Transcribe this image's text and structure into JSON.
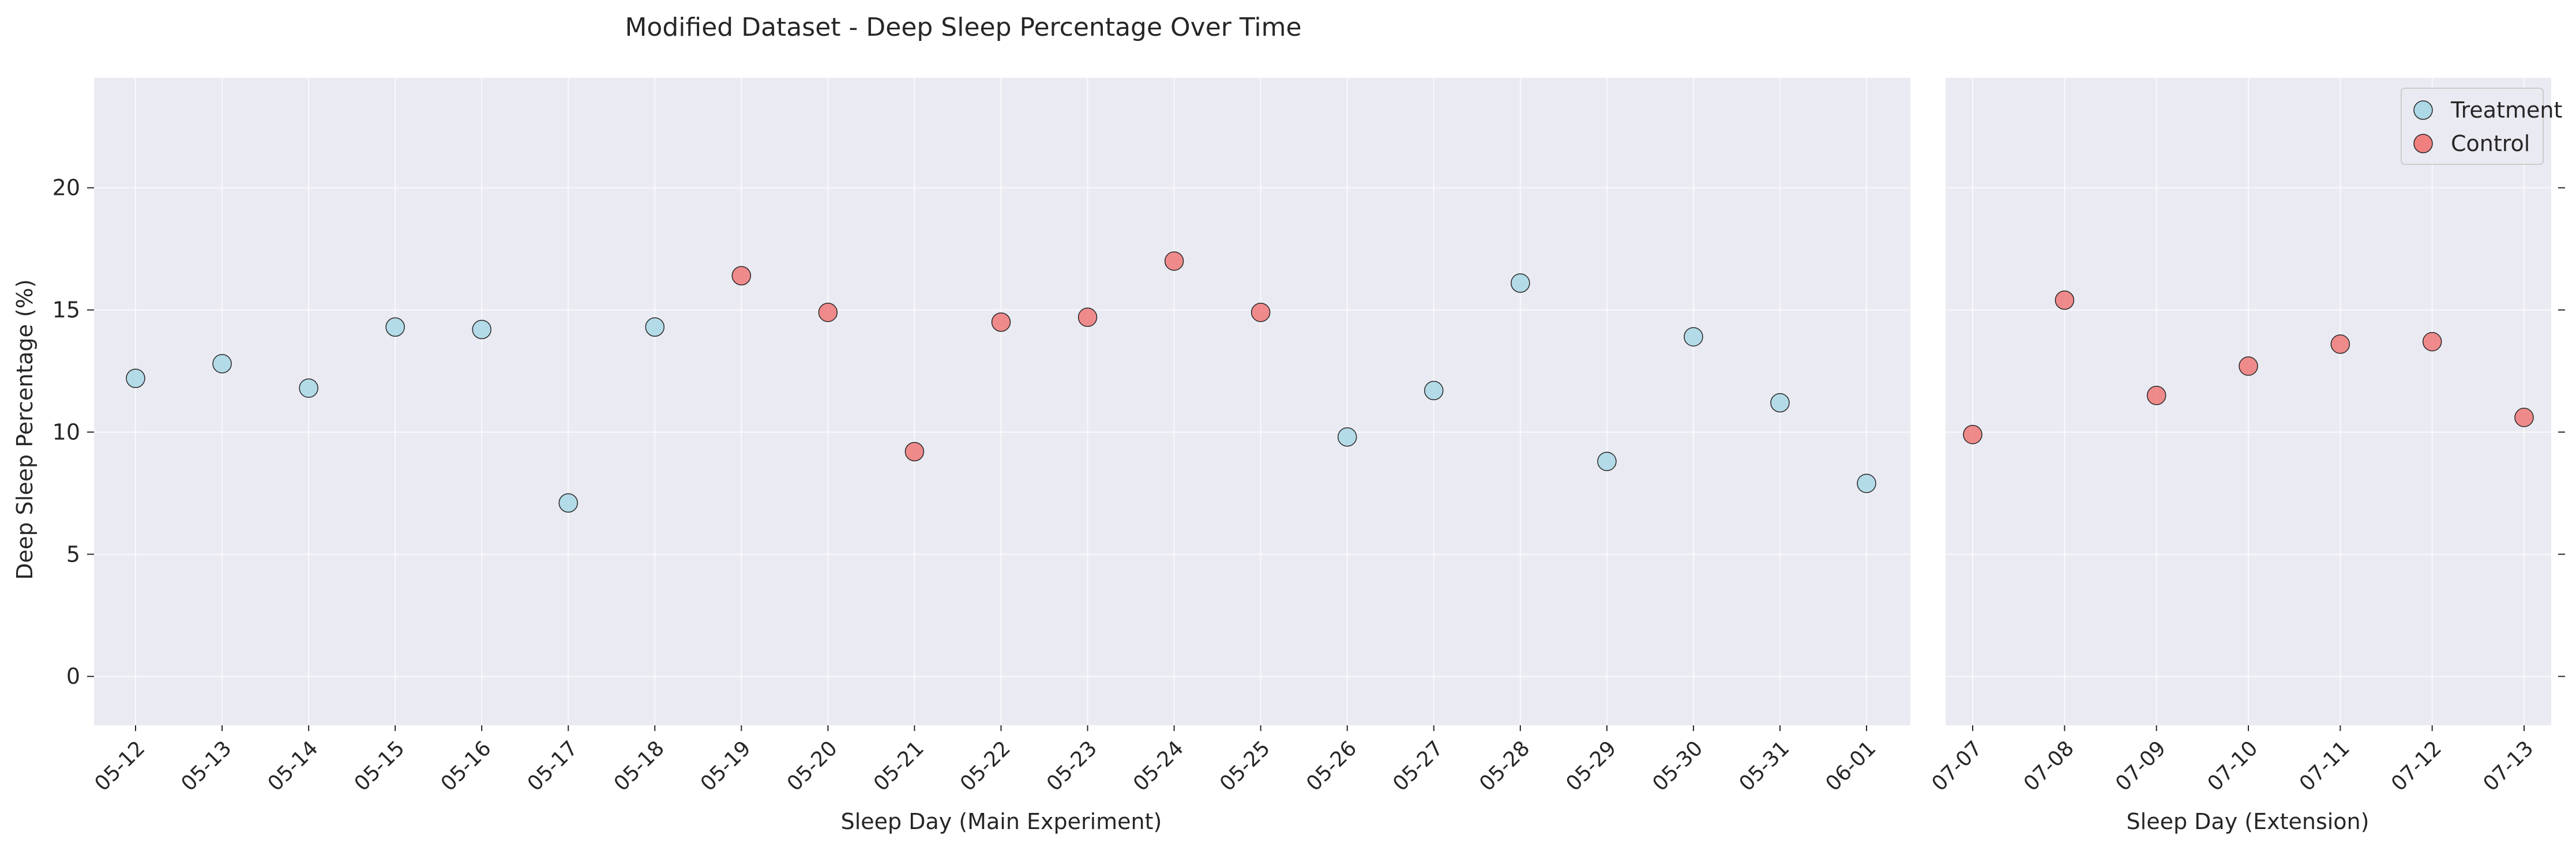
{
  "chart_data": {
    "type": "scatter",
    "title": "Modified Dataset - Deep Sleep Percentage Over Time",
    "ylabel": "Deep Sleep Percentage (%)",
    "ylim": [
      -2,
      24.5
    ],
    "yticks": [
      0,
      5,
      10,
      15,
      20
    ],
    "grid": true,
    "legend": {
      "placement": "top-right",
      "entries": [
        "Treatment",
        "Control"
      ]
    },
    "colors": {
      "Treatment": "#add8e6",
      "Control": "#f08080",
      "edge": "#262626",
      "axes_bg": "#eaeaf2",
      "grid": "#ffffff"
    },
    "panels": [
      {
        "id": "main",
        "xlabel": "Sleep Day (Main Experiment)",
        "categories": [
          "05-12",
          "05-13",
          "05-14",
          "05-15",
          "05-16",
          "05-17",
          "05-18",
          "05-19",
          "05-20",
          "05-21",
          "05-22",
          "05-23",
          "05-24",
          "05-25",
          "05-26",
          "05-27",
          "05-28",
          "05-29",
          "05-30",
          "05-31",
          "06-01"
        ],
        "values": [
          12.2,
          12.8,
          11.8,
          14.3,
          14.2,
          7.1,
          14.3,
          16.4,
          14.9,
          9.2,
          14.5,
          14.7,
          17.0,
          14.9,
          9.8,
          11.7,
          16.1,
          8.8,
          13.9,
          11.2,
          7.9
        ],
        "groups": [
          "Treatment",
          "Treatment",
          "Treatment",
          "Treatment",
          "Treatment",
          "Treatment",
          "Treatment",
          "Control",
          "Control",
          "Control",
          "Control",
          "Control",
          "Control",
          "Control",
          "Treatment",
          "Treatment",
          "Treatment",
          "Treatment",
          "Treatment",
          "Treatment",
          "Treatment"
        ]
      },
      {
        "id": "extension",
        "xlabel": "Sleep Day (Extension)",
        "categories": [
          "07-07",
          "07-08",
          "07-09",
          "07-10",
          "07-11",
          "07-12",
          "07-13"
        ],
        "values": [
          9.9,
          15.4,
          11.5,
          12.7,
          13.6,
          13.7,
          10.6
        ],
        "groups": [
          "Control",
          "Control",
          "Control",
          "Control",
          "Control",
          "Control",
          "Control"
        ]
      }
    ]
  }
}
